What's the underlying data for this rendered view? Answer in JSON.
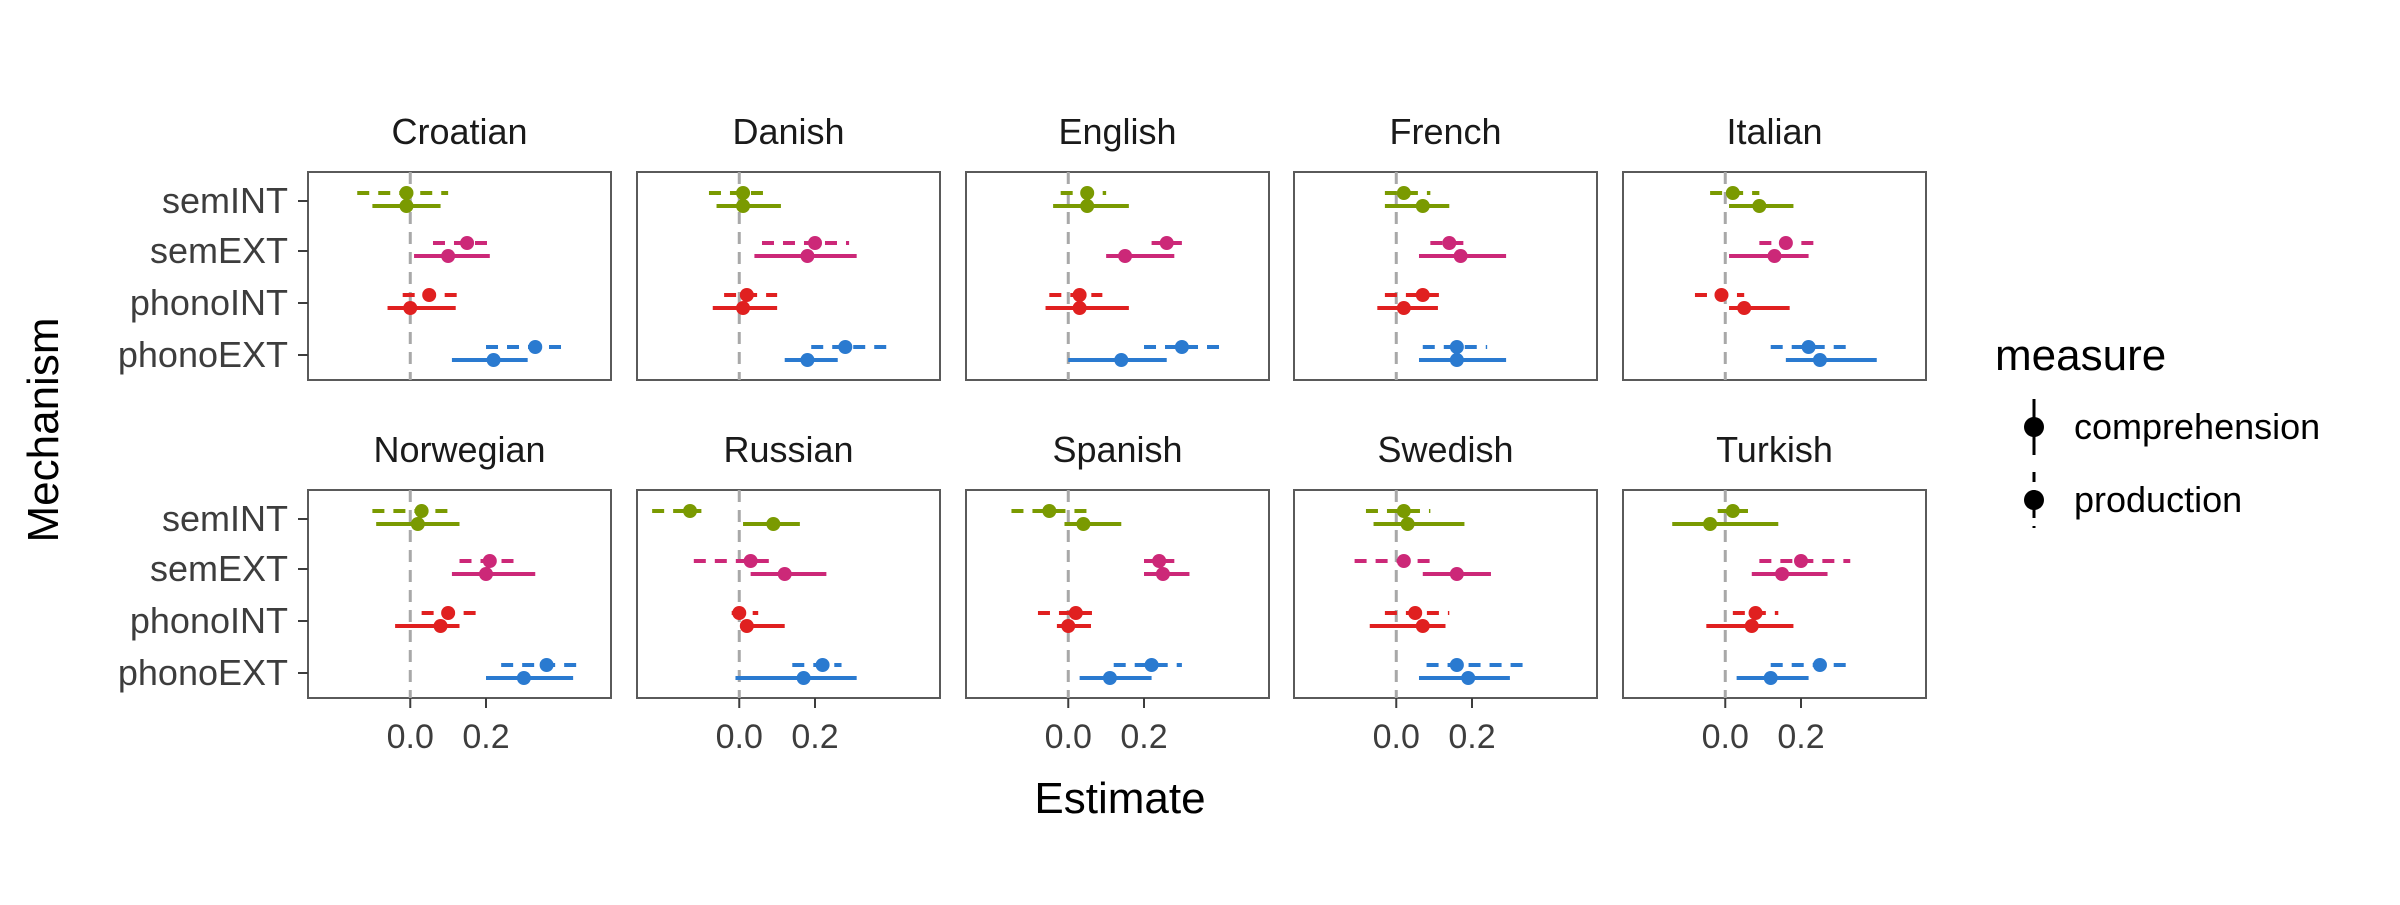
{
  "chart_data": {
    "type": "dot-interval",
    "xlabel": "Estimate",
    "ylabel": "Mechanism",
    "mechanisms": [
      "semINT",
      "semEXT",
      "phonoINT",
      "phonoEXT"
    ],
    "x_ticks": [
      "0.0",
      "0.2"
    ],
    "x_tick_values": [
      0.0,
      0.2
    ],
    "xlim": [
      -0.27,
      0.53
    ],
    "reference_line": 0,
    "legend": {
      "title": "measure",
      "position": "right",
      "items": [
        {
          "label": "comprehension",
          "line": "solid"
        },
        {
          "label": "production",
          "line": "dashed"
        }
      ]
    },
    "colors": {
      "semINT": "#7a9a01",
      "semEXT": "#cc2878",
      "phonoINT": "#e02020",
      "phonoEXT": "#2a7ad0"
    },
    "panels": [
      {
        "language": "Croatian",
        "rows": [
          {
            "mechanism": "semINT",
            "production": [
              -0.01,
              -0.14,
              0.1
            ],
            "comprehension": [
              -0.01,
              -0.1,
              0.08
            ]
          },
          {
            "mechanism": "semEXT",
            "production": [
              0.15,
              0.06,
              0.22
            ],
            "comprehension": [
              0.1,
              0.01,
              0.21
            ]
          },
          {
            "mechanism": "phonoINT",
            "production": [
              0.05,
              -0.02,
              0.14
            ],
            "comprehension": [
              0.0,
              -0.06,
              0.12
            ]
          },
          {
            "mechanism": "phonoEXT",
            "production": [
              0.33,
              0.2,
              0.42
            ],
            "comprehension": [
              0.22,
              0.11,
              0.31
            ]
          }
        ]
      },
      {
        "language": "Danish",
        "rows": [
          {
            "mechanism": "semINT",
            "production": [
              0.01,
              -0.08,
              0.07
            ],
            "comprehension": [
              0.01,
              -0.06,
              0.11
            ]
          },
          {
            "mechanism": "semEXT",
            "production": [
              0.2,
              0.06,
              0.29
            ],
            "comprehension": [
              0.18,
              0.04,
              0.31
            ]
          },
          {
            "mechanism": "phonoINT",
            "production": [
              0.02,
              -0.04,
              0.1
            ],
            "comprehension": [
              0.01,
              -0.07,
              0.1
            ]
          },
          {
            "mechanism": "phonoEXT",
            "production": [
              0.28,
              0.19,
              0.4
            ],
            "comprehension": [
              0.18,
              0.12,
              0.26
            ]
          }
        ]
      },
      {
        "language": "English",
        "rows": [
          {
            "mechanism": "semINT",
            "production": [
              0.05,
              -0.02,
              0.1
            ],
            "comprehension": [
              0.05,
              -0.04,
              0.16
            ]
          },
          {
            "mechanism": "semEXT",
            "production": [
              0.26,
              0.22,
              0.3
            ],
            "comprehension": [
              0.15,
              0.1,
              0.28
            ]
          },
          {
            "mechanism": "phonoINT",
            "production": [
              0.03,
              -0.05,
              0.09
            ],
            "comprehension": [
              0.03,
              -0.06,
              0.16
            ]
          },
          {
            "mechanism": "phonoEXT",
            "production": [
              0.3,
              0.2,
              0.4
            ],
            "comprehension": [
              0.14,
              0.0,
              0.26
            ]
          }
        ]
      },
      {
        "language": "French",
        "rows": [
          {
            "mechanism": "semINT",
            "production": [
              0.02,
              -0.03,
              0.09
            ],
            "comprehension": [
              0.07,
              -0.03,
              0.14
            ]
          },
          {
            "mechanism": "semEXT",
            "production": [
              0.14,
              0.09,
              0.2
            ],
            "comprehension": [
              0.17,
              0.06,
              0.29
            ]
          },
          {
            "mechanism": "phonoINT",
            "production": [
              0.07,
              -0.03,
              0.13
            ],
            "comprehension": [
              0.02,
              -0.05,
              0.11
            ]
          },
          {
            "mechanism": "phonoEXT",
            "production": [
              0.16,
              0.07,
              0.24
            ],
            "comprehension": [
              0.16,
              0.06,
              0.29
            ]
          }
        ]
      },
      {
        "language": "Italian",
        "rows": [
          {
            "mechanism": "semINT",
            "production": [
              0.02,
              -0.04,
              0.09
            ],
            "comprehension": [
              0.09,
              0.01,
              0.18
            ]
          },
          {
            "mechanism": "semEXT",
            "production": [
              0.16,
              0.09,
              0.25
            ],
            "comprehension": [
              0.13,
              0.01,
              0.22
            ]
          },
          {
            "mechanism": "phonoINT",
            "production": [
              -0.01,
              -0.08,
              0.05
            ],
            "comprehension": [
              0.05,
              0.01,
              0.17
            ]
          },
          {
            "mechanism": "phonoEXT",
            "production": [
              0.22,
              0.12,
              0.33
            ],
            "comprehension": [
              0.25,
              0.16,
              0.4
            ]
          }
        ]
      },
      {
        "language": "Norwegian",
        "rows": [
          {
            "mechanism": "semINT",
            "production": [
              0.03,
              -0.1,
              0.12
            ],
            "comprehension": [
              0.02,
              -0.09,
              0.13
            ]
          },
          {
            "mechanism": "semEXT",
            "production": [
              0.21,
              0.13,
              0.29
            ],
            "comprehension": [
              0.2,
              0.11,
              0.33
            ]
          },
          {
            "mechanism": "phonoINT",
            "production": [
              0.1,
              0.03,
              0.18
            ],
            "comprehension": [
              0.08,
              -0.04,
              0.13
            ]
          },
          {
            "mechanism": "phonoEXT",
            "production": [
              0.36,
              0.24,
              0.44
            ],
            "comprehension": [
              0.3,
              0.2,
              0.43
            ]
          }
        ]
      },
      {
        "language": "Russian",
        "rows": [
          {
            "mechanism": "semINT",
            "production": [
              -0.13,
              -0.23,
              -0.1
            ],
            "comprehension": [
              0.09,
              0.01,
              0.16
            ]
          },
          {
            "mechanism": "semEXT",
            "production": [
              0.03,
              -0.12,
              0.1
            ],
            "comprehension": [
              0.12,
              0.03,
              0.23
            ]
          },
          {
            "mechanism": "phonoINT",
            "production": [
              0.0,
              -0.02,
              0.05
            ],
            "comprehension": [
              0.02,
              0.01,
              0.12
            ]
          },
          {
            "mechanism": "phonoEXT",
            "production": [
              0.22,
              0.14,
              0.27
            ],
            "comprehension": [
              0.17,
              -0.01,
              0.31
            ]
          }
        ]
      },
      {
        "language": "Spanish",
        "rows": [
          {
            "mechanism": "semINT",
            "production": [
              -0.05,
              -0.15,
              0.06
            ],
            "comprehension": [
              0.04,
              -0.01,
              0.14
            ]
          },
          {
            "mechanism": "semEXT",
            "production": [
              0.24,
              0.2,
              0.28
            ],
            "comprehension": [
              0.25,
              0.2,
              0.32
            ]
          },
          {
            "mechanism": "phonoINT",
            "production": [
              0.02,
              -0.08,
              0.07
            ],
            "comprehension": [
              0.0,
              -0.03,
              0.06
            ]
          },
          {
            "mechanism": "phonoEXT",
            "production": [
              0.22,
              0.12,
              0.3
            ],
            "comprehension": [
              0.11,
              0.03,
              0.22
            ]
          }
        ]
      },
      {
        "language": "Swedish",
        "rows": [
          {
            "mechanism": "semINT",
            "production": [
              0.02,
              -0.08,
              0.09
            ],
            "comprehension": [
              0.03,
              -0.06,
              0.18
            ]
          },
          {
            "mechanism": "semEXT",
            "production": [
              0.02,
              -0.11,
              0.1
            ],
            "comprehension": [
              0.16,
              0.07,
              0.25
            ]
          },
          {
            "mechanism": "phonoINT",
            "production": [
              0.05,
              -0.03,
              0.14
            ],
            "comprehension": [
              0.07,
              -0.07,
              0.13
            ]
          },
          {
            "mechanism": "phonoEXT",
            "production": [
              0.16,
              0.08,
              0.34
            ],
            "comprehension": [
              0.19,
              0.06,
              0.3
            ]
          }
        ]
      },
      {
        "language": "Turkish",
        "rows": [
          {
            "mechanism": "semINT",
            "production": [
              0.02,
              -0.02,
              0.06
            ],
            "comprehension": [
              -0.04,
              -0.14,
              0.14
            ]
          },
          {
            "mechanism": "semEXT",
            "production": [
              0.2,
              0.09,
              0.33
            ],
            "comprehension": [
              0.15,
              0.07,
              0.27
            ]
          },
          {
            "mechanism": "phonoINT",
            "production": [
              0.08,
              0.02,
              0.14
            ],
            "comprehension": [
              0.07,
              -0.05,
              0.18
            ]
          },
          {
            "mechanism": "phonoEXT",
            "production": [
              0.25,
              0.12,
              0.33
            ],
            "comprehension": [
              0.12,
              0.03,
              0.22
            ]
          }
        ]
      }
    ]
  }
}
